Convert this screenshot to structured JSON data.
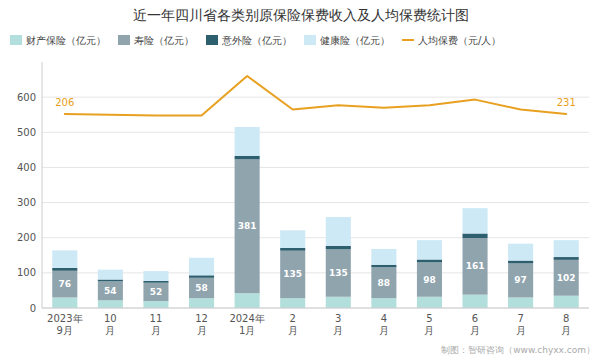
{
  "chart_data": {
    "type": "bar",
    "title": "近一年四川省各类别原保险保费收入及人均保费统计图",
    "categories": [
      "2023年\n9月",
      "10\n月",
      "11\n月",
      "12\n月",
      "2024年\n1月",
      "2\n月",
      "3\n月",
      "4\n月",
      "5\n月",
      "6\n月",
      "7\n月",
      "8\n月"
    ],
    "stacked": true,
    "series": [
      {
        "name": "财产保险（亿元）",
        "color": "#b2dfdb",
        "values": [
          30,
          22,
          20,
          28,
          42,
          28,
          32,
          28,
          32,
          38,
          30,
          35
        ]
      },
      {
        "name": "寿险（亿元）",
        "color": "#90a4ae",
        "data_labels": true,
        "values": [
          76,
          54,
          52,
          58,
          381,
          135,
          135,
          88,
          98,
          161,
          97,
          102
        ]
      },
      {
        "name": "意外险（亿元）",
        "color": "#2e5f6e",
        "values": [
          8,
          5,
          5,
          7,
          10,
          8,
          10,
          7,
          8,
          13,
          8,
          8
        ]
      },
      {
        "name": "健康险（亿元）",
        "color": "#cce9f5",
        "values": [
          50,
          28,
          28,
          50,
          82,
          50,
          82,
          45,
          55,
          72,
          48,
          48
        ]
      },
      {
        "name": "人均保费（元/人）",
        "type": "line",
        "color": "#e8a020",
        "values": [
          552,
          550,
          548,
          548,
          660,
          565,
          577,
          570,
          577,
          593,
          565,
          552
        ]
      }
    ],
    "annotations": [
      "206",
      "231"
    ],
    "ylim": [
      0,
      700
    ],
    "yticks": [
      0,
      100,
      200,
      300,
      400,
      500,
      600
    ],
    "grid": true,
    "legend": "upper left",
    "footer": "制图：智研咨询（www.chyxx.com）"
  }
}
